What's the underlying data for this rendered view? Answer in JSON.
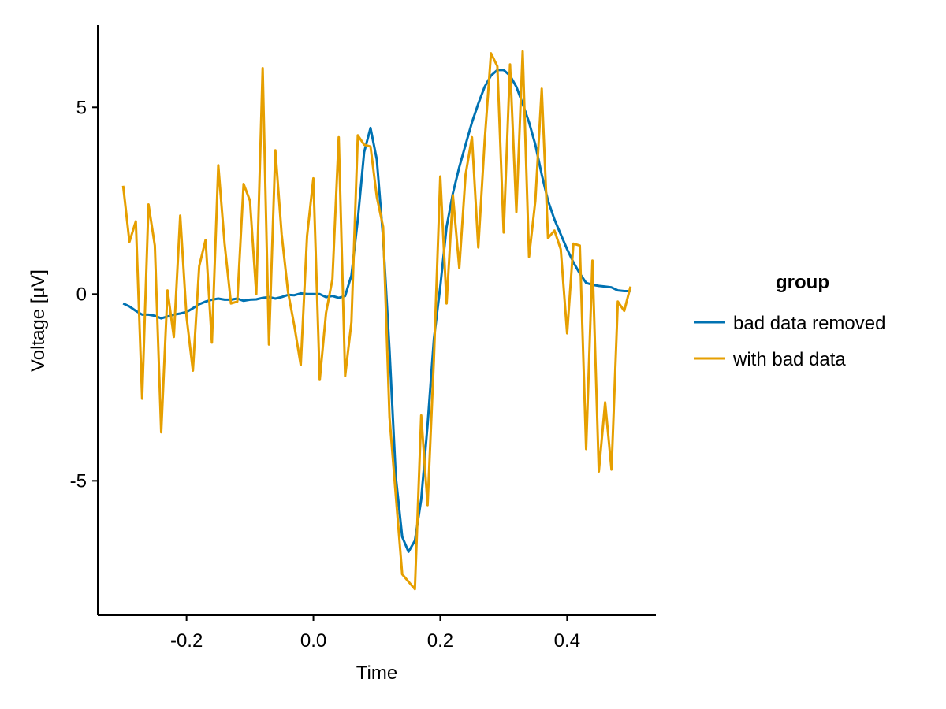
{
  "chart_data": {
    "type": "line",
    "xlabel": "Time",
    "ylabel": "Voltage [μV]",
    "xlim": [
      -0.34,
      0.54
    ],
    "ylim": [
      -8.6,
      7.2
    ],
    "xticks": [
      -0.2,
      0.0,
      0.2,
      0.4
    ],
    "xtick_labels": [
      "-0.2",
      "0.0",
      "0.2",
      "0.4"
    ],
    "yticks": [
      5,
      0,
      -5
    ],
    "ytick_labels": [
      "5",
      "0",
      "-5"
    ],
    "grid": false,
    "legend": {
      "title": "group",
      "placement": "right"
    },
    "series": [
      {
        "name": "bad data removed",
        "color": "#0072B2",
        "x": [
          -0.3,
          -0.29,
          -0.28,
          -0.27,
          -0.26,
          -0.25,
          -0.24,
          -0.23,
          -0.22,
          -0.21,
          -0.2,
          -0.19,
          -0.18,
          -0.17,
          -0.16,
          -0.15,
          -0.14,
          -0.13,
          -0.12,
          -0.11,
          -0.1,
          -0.09,
          -0.08,
          -0.07,
          -0.06,
          -0.05,
          -0.04,
          -0.03,
          -0.02,
          -0.01,
          0.0,
          0.01,
          0.02,
          0.03,
          0.04,
          0.05,
          0.06,
          0.07,
          0.08,
          0.09,
          0.1,
          0.11,
          0.12,
          0.13,
          0.14,
          0.15,
          0.16,
          0.17,
          0.18,
          0.19,
          0.2,
          0.21,
          0.22,
          0.23,
          0.24,
          0.25,
          0.26,
          0.27,
          0.28,
          0.29,
          0.3,
          0.31,
          0.32,
          0.33,
          0.34,
          0.35,
          0.36,
          0.37,
          0.38,
          0.39,
          0.4,
          0.41,
          0.42,
          0.43,
          0.44,
          0.45,
          0.46,
          0.47,
          0.48,
          0.49,
          0.5
        ],
        "y": [
          -0.25,
          -0.33,
          -0.45,
          -0.55,
          -0.55,
          -0.58,
          -0.65,
          -0.6,
          -0.55,
          -0.52,
          -0.48,
          -0.38,
          -0.27,
          -0.2,
          -0.15,
          -0.12,
          -0.15,
          -0.15,
          -0.12,
          -0.18,
          -0.15,
          -0.14,
          -0.1,
          -0.08,
          -0.12,
          -0.08,
          -0.02,
          -0.03,
          0.02,
          0.0,
          0.0,
          0.0,
          -0.08,
          -0.05,
          -0.1,
          -0.05,
          0.5,
          2.0,
          3.8,
          4.45,
          3.6,
          1.5,
          -1.5,
          -4.9,
          -6.5,
          -6.9,
          -6.6,
          -5.5,
          -3.5,
          -1.2,
          0.2,
          1.8,
          2.7,
          3.4,
          4.0,
          4.6,
          5.1,
          5.55,
          5.85,
          6.0,
          6.0,
          5.85,
          5.55,
          5.1,
          4.6,
          4.0,
          3.2,
          2.5,
          2.0,
          1.6,
          1.2,
          0.85,
          0.55,
          0.3,
          0.25,
          0.22,
          0.2,
          0.18,
          0.1,
          0.08,
          0.08
        ]
      },
      {
        "name": "with bad data",
        "color": "#E69F00",
        "x": [
          -0.3,
          -0.29,
          -0.28,
          -0.27,
          -0.26,
          -0.25,
          -0.24,
          -0.23,
          -0.22,
          -0.21,
          -0.2,
          -0.19,
          -0.18,
          -0.17,
          -0.16,
          -0.15,
          -0.14,
          -0.13,
          -0.12,
          -0.11,
          -0.1,
          -0.09,
          -0.08,
          -0.07,
          -0.06,
          -0.05,
          -0.04,
          -0.03,
          -0.02,
          -0.01,
          0.0,
          0.01,
          0.02,
          0.03,
          0.04,
          0.05,
          0.06,
          0.07,
          0.08,
          0.09,
          0.1,
          0.11,
          0.12,
          0.13,
          0.14,
          0.15,
          0.16,
          0.17,
          0.18,
          0.19,
          0.2,
          0.21,
          0.22,
          0.23,
          0.24,
          0.25,
          0.26,
          0.27,
          0.28,
          0.29,
          0.3,
          0.31,
          0.32,
          0.33,
          0.34,
          0.35,
          0.36,
          0.37,
          0.38,
          0.39,
          0.4,
          0.41,
          0.42,
          0.43,
          0.44,
          0.45,
          0.46,
          0.47,
          0.48,
          0.49,
          0.5
        ],
        "y": [
          2.9,
          1.4,
          1.95,
          -2.8,
          2.4,
          1.3,
          -3.7,
          0.1,
          -1.15,
          2.1,
          -0.6,
          -2.05,
          0.75,
          1.45,
          -1.3,
          3.45,
          1.35,
          -0.25,
          -0.2,
          2.95,
          2.5,
          0.0,
          6.05,
          -1.35,
          3.85,
          1.6,
          0.05,
          -0.85,
          -1.9,
          1.55,
          3.1,
          -2.3,
          -0.5,
          0.4,
          4.2,
          -2.2,
          -0.75,
          4.25,
          4.0,
          3.95,
          2.6,
          1.8,
          -3.3,
          -5.4,
          -7.5,
          -7.7,
          -7.9,
          -3.25,
          -5.65,
          -1.75,
          3.15,
          -0.25,
          2.65,
          0.7,
          3.2,
          4.2,
          1.25,
          4.1,
          6.45,
          6.1,
          1.65,
          6.15,
          2.2,
          6.5,
          1.0,
          2.5,
          5.5,
          1.5,
          1.7,
          1.2,
          -1.05,
          1.35,
          1.3,
          -4.15,
          0.9,
          -4.75,
          -2.9,
          -4.7,
          -0.2,
          -0.45,
          0.2
        ]
      }
    ]
  }
}
